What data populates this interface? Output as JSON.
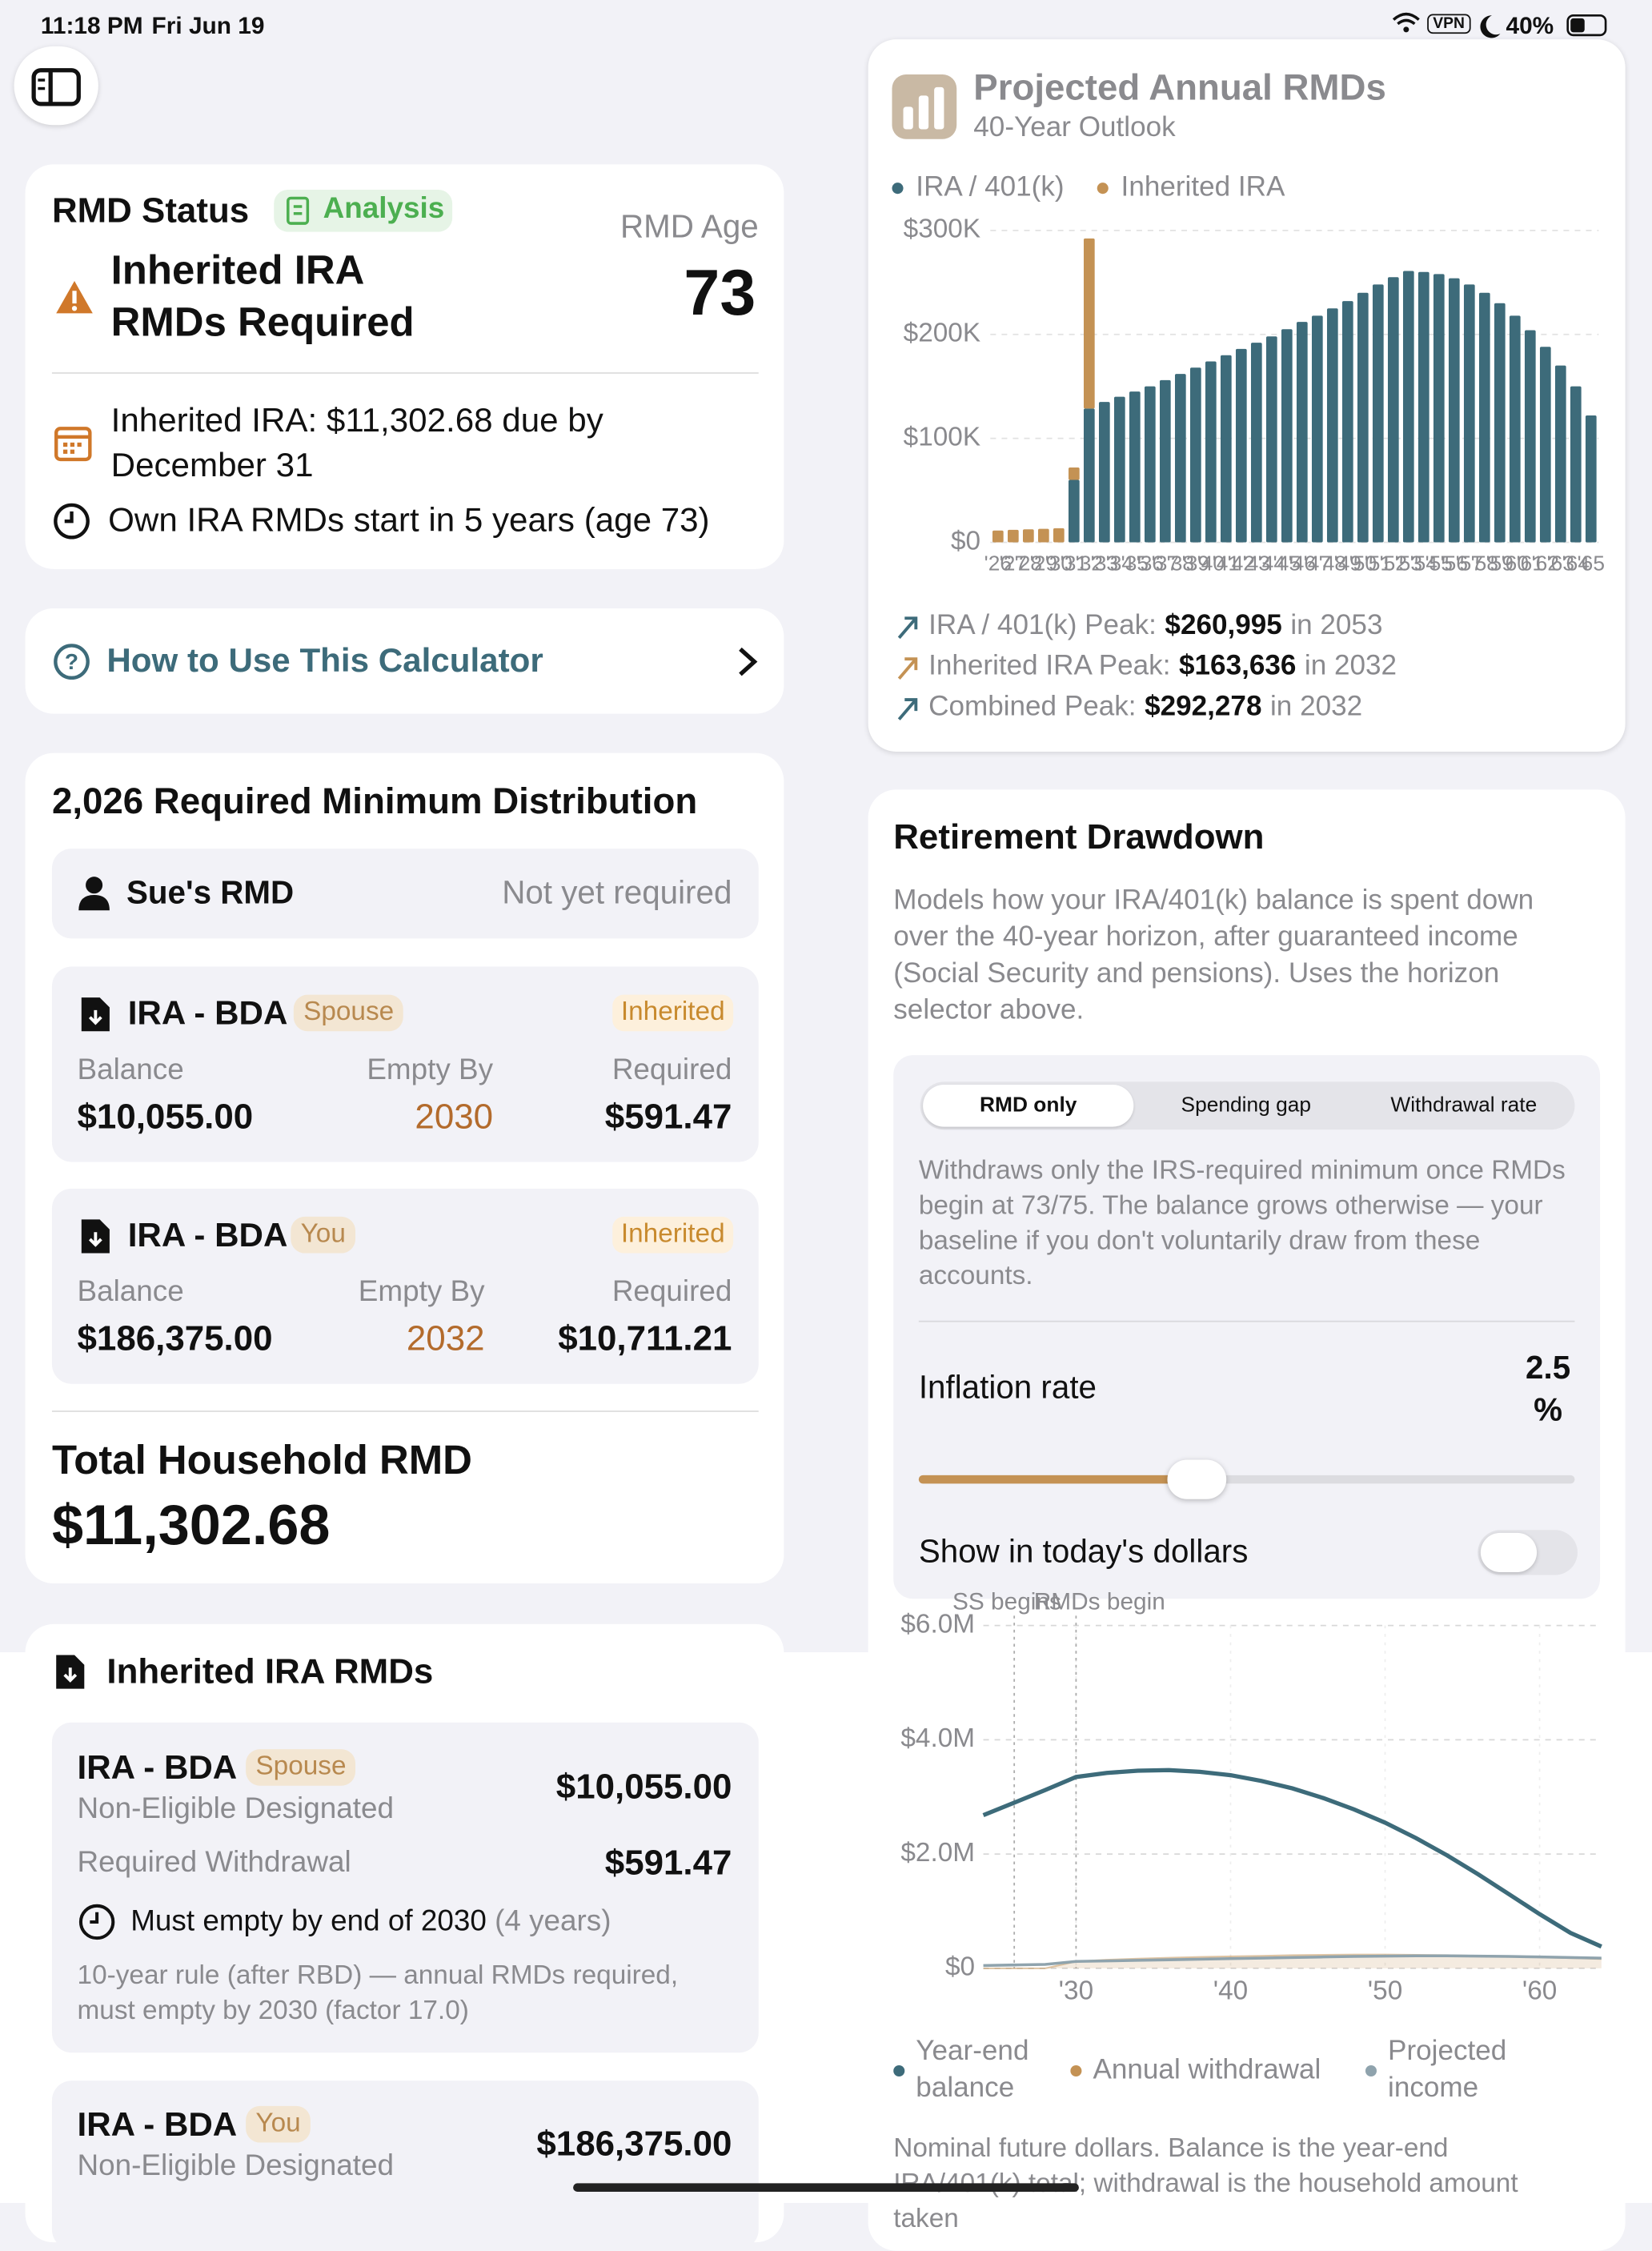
{
  "status_bar": {
    "time": "11:18 PM",
    "date": "Fri Jun 19",
    "vpn": "VPN",
    "battery": "40%"
  },
  "rmd_status": {
    "title": "RMD Status",
    "badge": "Analysis",
    "age_label": "RMD Age",
    "age": 73,
    "headline": "Inherited IRA RMDs Required",
    "due": "Inherited IRA: $11,302.68 due by December 31",
    "own_start": "Own IRA RMDs start in 5 years (age 73)"
  },
  "how_to": {
    "label": "How to Use This Calculator"
  },
  "rmd_year": {
    "title": "2,026 Required Minimum Distribution",
    "person": {
      "name": "Sue's RMD",
      "status": "Not yet required"
    },
    "accounts": [
      {
        "name": "IRA - BDA",
        "owner": "Spouse",
        "tag": "Inherited",
        "balance_label": "Balance",
        "balance": "$10,055.00",
        "empty_label": "Empty By",
        "empty_by": "2030",
        "required_label": "Required",
        "required": "$591.47"
      },
      {
        "name": "IRA - BDA",
        "owner": "You",
        "tag": "Inherited",
        "balance_label": "Balance",
        "balance": "$186,375.00",
        "empty_label": "Empty By",
        "empty_by": "2032",
        "required_label": "Required",
        "required": "$10,711.21"
      }
    ],
    "total_label": "Total Household RMD",
    "total": "$11,302.68"
  },
  "inherited": {
    "title": "Inherited IRA RMDs",
    "accounts": [
      {
        "name": "IRA - BDA",
        "owner": "Spouse",
        "type": "Non-Eligible Designated",
        "balance": "$10,055.00",
        "required_label": "Required Withdrawal",
        "required": "$591.47",
        "deadline": "Must empty by end of 2030",
        "deadline_note": "(4 years)",
        "rule": "10-year rule (after RBD) — annual RMDs required, must empty by 2030 (factor 17.0)"
      },
      {
        "name": "IRA - BDA",
        "owner": "You",
        "type": "Non-Eligible Designated",
        "balance": "$186,375.00"
      }
    ]
  },
  "drawdown": {
    "title": "Retirement Drawdown",
    "description": "Models how your IRA/401(k) balance is spent down over the 40-year horizon, after guaranteed income (Social Security and pensions). Uses the horizon selector above.",
    "modes": [
      "RMD only",
      "Spending gap",
      "Withdrawal rate"
    ],
    "mode_description": "Withdraws only the IRS-required minimum once RMDs begin at 73/75. The balance grows otherwise — your baseline if you don't voluntarily draw from these accounts.",
    "inflation_label": "Inflation rate",
    "inflation_value": "2.5 %",
    "dollars_toggle": "Show in today's dollars"
  },
  "chart_data": [
    {
      "type": "bar",
      "stacked": true,
      "title": "Projected Annual RMDs",
      "subtitle": "40-Year Outlook",
      "categories": [
        "'26",
        "'27",
        "'28",
        "'29",
        "'30",
        "'31",
        "'32",
        "'33",
        "'34",
        "'35",
        "'36",
        "'37",
        "'38",
        "'39",
        "'40",
        "'41",
        "'42",
        "'43",
        "'44",
        "'45",
        "'46",
        "'47",
        "'48",
        "'49",
        "'50",
        "'51",
        "'52",
        "'53",
        "'54",
        "'55",
        "'56",
        "'57",
        "'58",
        "'59",
        "'60",
        "'61",
        "'62",
        "'63",
        "'64",
        "'65"
      ],
      "series": [
        {
          "name": "IRA / 401(k)",
          "color": "#3d6b7a",
          "values": [
            0,
            0,
            0,
            0,
            0,
            60000,
            128642,
            135000,
            140000,
            145000,
            150000,
            156000,
            162000,
            168000,
            174000,
            180000,
            186000,
            192000,
            198000,
            205000,
            212000,
            218000,
            225000,
            232000,
            240000,
            248000,
            255000,
            260995,
            260000,
            258000,
            254000,
            248000,
            240000,
            230000,
            218000,
            204000,
            188000,
            170000,
            150000,
            122000
          ]
        },
        {
          "name": "Inherited IRA",
          "color": "#c49254",
          "values": [
            11302.68,
            12000,
            12500,
            13000,
            13500,
            12000,
            163636,
            0,
            0,
            0,
            0,
            0,
            0,
            0,
            0,
            0,
            0,
            0,
            0,
            0,
            0,
            0,
            0,
            0,
            0,
            0,
            0,
            0,
            0,
            0,
            0,
            0,
            0,
            0,
            0,
            0,
            0,
            0,
            0,
            0
          ]
        }
      ],
      "ylim": [
        0,
        300000
      ],
      "yticks": [
        {
          "value": 0,
          "label": "$0"
        },
        {
          "value": 100000,
          "label": "$100K"
        },
        {
          "value": 200000,
          "label": "$200K"
        },
        {
          "value": 300000,
          "label": "$300K"
        }
      ],
      "grid": true,
      "peaks": [
        {
          "label": "IRA / 401(k) Peak:",
          "value": "$260,995",
          "note": "in 2053",
          "color": "#3d6b7a"
        },
        {
          "label": "Inherited IRA Peak:",
          "value": "$163,636",
          "note": "in 2032",
          "color": "#c49254"
        },
        {
          "label": "Combined Peak:",
          "value": "$292,278",
          "note": "in 2032",
          "color": "#3d6b7a"
        }
      ]
    },
    {
      "type": "line",
      "x": [
        2024,
        2026,
        2028,
        2030,
        2032,
        2034,
        2036,
        2038,
        2040,
        2042,
        2044,
        2046,
        2048,
        2050,
        2052,
        2054,
        2056,
        2058,
        2060,
        2062,
        2064
      ],
      "series": [
        {
          "name": "Year-end balance",
          "color": "#3d6b7a",
          "values": [
            2680000,
            2900000,
            3120000,
            3350000,
            3420000,
            3460000,
            3470000,
            3440000,
            3380000,
            3280000,
            3150000,
            2980000,
            2780000,
            2550000,
            2280000,
            1980000,
            1650000,
            1300000,
            950000,
            620000,
            380000
          ]
        },
        {
          "name": "Annual withdrawal",
          "color": "#c49254",
          "area": true,
          "values": [
            0,
            0,
            0,
            120000,
            150000,
            170000,
            185000,
            200000,
            210000,
            220000,
            230000,
            235000,
            240000,
            240000,
            235000,
            230000,
            220000,
            210000,
            195000,
            180000,
            165000
          ]
        },
        {
          "name": "Projected income",
          "color": "#8fa3ad",
          "values": [
            50000,
            60000,
            70000,
            120000,
            130000,
            140000,
            150000,
            160000,
            170000,
            180000,
            190000,
            200000,
            210000,
            215000,
            220000,
            220000,
            215000,
            210000,
            200000,
            190000,
            180000
          ]
        }
      ],
      "xlim": [
        2024,
        2064
      ],
      "xticks": [
        {
          "value": 2030,
          "label": "'30"
        },
        {
          "value": 2040,
          "label": "'40"
        },
        {
          "value": 2050,
          "label": "'50"
        },
        {
          "value": 2060,
          "label": "'60"
        }
      ],
      "ylim": [
        0,
        6000000
      ],
      "yticks": [
        {
          "value": 0,
          "label": "$0"
        },
        {
          "value": 2000000,
          "label": "$2.0M"
        },
        {
          "value": 4000000,
          "label": "$4.0M"
        },
        {
          "value": 6000000,
          "label": "$6.0M"
        }
      ],
      "grid": true,
      "annotations": [
        {
          "x": 2026,
          "label": "SS begins"
        },
        {
          "x": 2030,
          "label": "RMDs begin"
        }
      ],
      "note": "Nominal future dollars. Balance is the year-end IRA/401(k) total; withdrawal is the household amount taken"
    }
  ]
}
